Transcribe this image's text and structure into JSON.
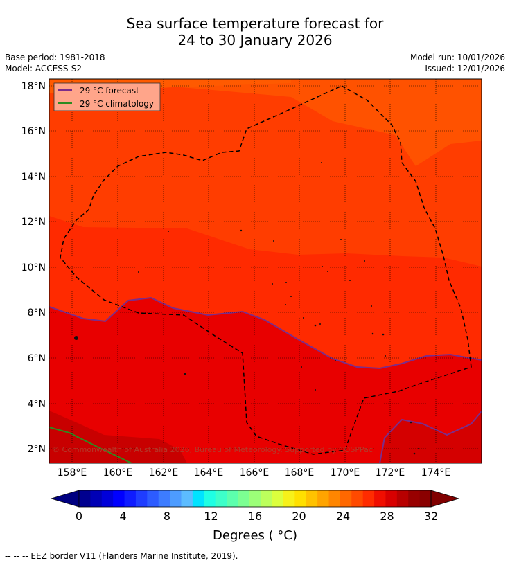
{
  "title_line1": "Sea surface temperature forecast for",
  "title_line2": "24 to 30 January 2026",
  "base_period": "Base period: 1981-2018",
  "model": "Model: ACCESS-S2",
  "model_run": "Model run: 10/01/2026",
  "issued": "Issued: 12/01/2026",
  "legend": {
    "forecast": "29 °C  forecast",
    "climatology": "29 °C  climatology",
    "forecast_color": "#7b2d8b",
    "climatology_color": "#2e8b1f"
  },
  "lat_labels": [
    "18°N",
    "16°N",
    "14°N",
    "12°N",
    "10°N",
    "8°N",
    "6°N",
    "4°N",
    "2°N"
  ],
  "lon_labels": [
    "158°E",
    "160°E",
    "162°E",
    "164°E",
    "166°E",
    "168°E",
    "170°E",
    "172°E",
    "174°E"
  ],
  "copyright": "© Commonwealth of Australia 2026, Bureau of Meteorology. Supported by COSPPac",
  "colorbar": {
    "ticks": [
      "0",
      "4",
      "8",
      "12",
      "16",
      "20",
      "24",
      "28",
      "32"
    ],
    "colors": [
      "#00008f",
      "#0000b5",
      "#0000d9",
      "#0000ff",
      "#0f1cff",
      "#1f3dff",
      "#2d5cff",
      "#3d7cff",
      "#4d9cff",
      "#5cbcff",
      "#00e3ff",
      "#1fffe4",
      "#3dffc9",
      "#5cffad",
      "#7cff92",
      "#9cff78",
      "#bcff5c",
      "#dcff3d",
      "#f7f11a",
      "#ffe000",
      "#ffc200",
      "#ffa400",
      "#ff8600",
      "#ff6800",
      "#ff4a00",
      "#ff2c00",
      "#f00e00",
      "#d80000",
      "#b80000",
      "#980000",
      "#8a0000"
    ],
    "low_color": "#000080",
    "high_color": "#800000",
    "label": "Degrees ( °C)"
  },
  "footer": "--  --  -- EEZ border V11 (Flanders Marine Institute, 2019)."
}
